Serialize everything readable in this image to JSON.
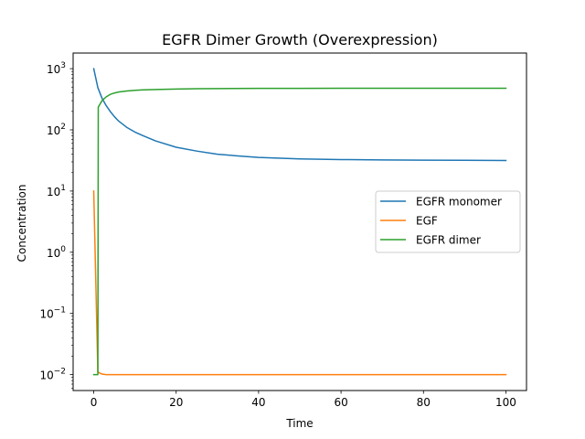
{
  "chart_data": {
    "type": "line",
    "title": "EGFR Dimer Growth (Overexpression)",
    "xlabel": "Time",
    "ylabel": "Concentration",
    "xlim": [
      -5,
      105
    ],
    "ylim": [
      0.0055,
      1800
    ],
    "yscale": "log",
    "xticks": [
      0,
      20,
      40,
      60,
      80,
      100
    ],
    "yticks": [
      {
        "value": 0.01,
        "label": "10",
        "exp": "−2"
      },
      {
        "value": 0.1,
        "label": "10",
        "exp": "−1"
      },
      {
        "value": 1,
        "label": "10",
        "exp": "0"
      },
      {
        "value": 10,
        "label": "10",
        "exp": "1"
      },
      {
        "value": 100,
        "label": "10",
        "exp": "2"
      },
      {
        "value": 1000,
        "label": "10",
        "exp": "3"
      }
    ],
    "grid": false,
    "legend_position": "center-right",
    "series": [
      {
        "name": "EGFR monomer",
        "color": "#1f77b4",
        "x": [
          0,
          1,
          2,
          3,
          4,
          5,
          6,
          8,
          10,
          12,
          15,
          20,
          25,
          30,
          35,
          40,
          50,
          60,
          70,
          80,
          90,
          100
        ],
        "y": [
          1000,
          490,
          330,
          250,
          200,
          165,
          140,
          110,
          92,
          80,
          66,
          52,
          45,
          40,
          37.5,
          35.5,
          33.5,
          32.7,
          32.2,
          32,
          31.8,
          31.6
        ]
      },
      {
        "name": "EGF",
        "color": "#ff7f0e",
        "x": [
          0,
          1,
          2,
          3,
          5,
          10,
          20,
          40,
          60,
          80,
          100
        ],
        "y": [
          10,
          0.011,
          0.0102,
          0.01,
          0.01,
          0.01,
          0.01,
          0.01,
          0.01,
          0.01,
          0.01
        ]
      },
      {
        "name": "EGFR dimer",
        "color": "#2ca02c",
        "x": [
          0,
          1,
          1.1,
          2,
          3,
          4,
          5,
          6,
          8,
          10,
          12,
          15,
          20,
          25,
          30,
          40,
          50,
          60,
          70,
          80,
          90,
          100
        ],
        "y": [
          0.01,
          0.01,
          235,
          300,
          345,
          380,
          400,
          415,
          432,
          442,
          450,
          457,
          465,
          470,
          473,
          476,
          477,
          478,
          478,
          478,
          478,
          478
        ]
      }
    ]
  }
}
